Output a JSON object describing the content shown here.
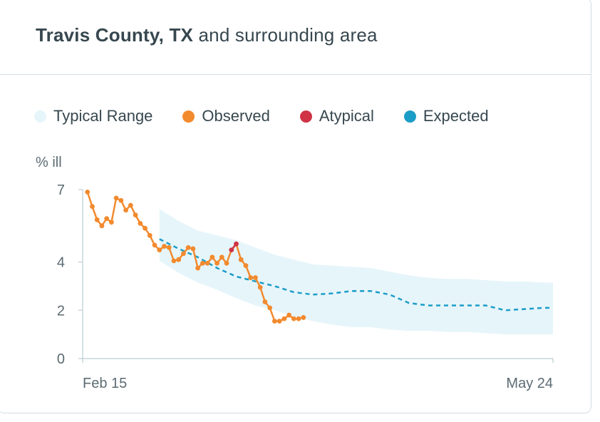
{
  "header": {
    "title_bold": "Travis County, TX",
    "title_rest": "and surrounding area"
  },
  "legend": [
    {
      "label": "Typical Range",
      "color": "#e6f5fa"
    },
    {
      "label": "Observed",
      "color": "#f28a2e"
    },
    {
      "label": "Atypical",
      "color": "#cf3345"
    },
    {
      "label": "Expected",
      "color": "#1c9dc7"
    }
  ],
  "chart_data": {
    "type": "line",
    "ylabel": "% ill",
    "y_ticks": [
      {
        "value": 0,
        "label": "0"
      },
      {
        "value": 2,
        "label": "2"
      },
      {
        "value": 4,
        "label": "4"
      },
      {
        "value": 7,
        "label": "7"
      }
    ],
    "ylim": [
      0,
      7
    ],
    "xlim": [
      0,
      98
    ],
    "x_ticks": [
      {
        "value": 0,
        "label": "Feb 15"
      },
      {
        "value": 98,
        "label": "May 24"
      }
    ],
    "colors": {
      "observed": "#f28a2e",
      "atypical": "#cf3345",
      "expected": "#1c9dc7",
      "range": "#e6f5fa",
      "axis": "#c8d6dc"
    },
    "series": [
      {
        "name": "Observed",
        "role": "observed",
        "x": [
          1,
          2,
          3,
          4,
          5,
          6,
          7,
          8,
          9,
          10,
          11,
          12,
          13,
          14,
          15,
          16,
          17,
          18,
          19,
          20,
          21,
          22,
          23,
          24,
          25,
          26,
          27,
          28,
          29,
          30,
          31,
          32,
          33,
          34,
          35,
          36,
          37,
          38,
          39,
          40,
          41,
          42,
          43,
          44,
          45,
          46
        ],
        "y": [
          6.9,
          6.3,
          5.75,
          5.5,
          5.8,
          5.65,
          6.65,
          6.55,
          6.15,
          6.35,
          5.95,
          5.6,
          5.4,
          5.1,
          4.7,
          4.5,
          4.65,
          4.6,
          4.05,
          4.1,
          4.35,
          4.6,
          4.55,
          3.75,
          3.95,
          3.95,
          4.2,
          3.95,
          4.2,
          3.95,
          4.5,
          4.75,
          4.1,
          3.85,
          3.35,
          3.35,
          2.95,
          2.35,
          2.1,
          1.55,
          1.55,
          1.65,
          1.8,
          1.65,
          1.65,
          1.7
        ]
      },
      {
        "name": "Atypical",
        "role": "atypical",
        "x": [
          31,
          32
        ],
        "y": [
          4.5,
          4.75
        ]
      },
      {
        "name": "Expected",
        "role": "expected",
        "x": [
          16,
          20,
          24,
          28,
          32,
          36,
          40,
          44,
          48,
          52,
          56,
          60,
          64,
          68,
          72,
          76,
          80,
          84,
          88,
          92,
          96,
          98
        ],
        "y": [
          4.95,
          4.55,
          4.2,
          3.75,
          3.4,
          3.2,
          3.0,
          2.75,
          2.65,
          2.7,
          2.8,
          2.8,
          2.65,
          2.3,
          2.2,
          2.2,
          2.2,
          2.2,
          2.0,
          2.05,
          2.1,
          2.1
        ]
      },
      {
        "name": "Typical Range",
        "role": "range",
        "x": [
          16,
          20,
          24,
          28,
          32,
          36,
          40,
          44,
          48,
          52,
          56,
          60,
          64,
          68,
          72,
          76,
          80,
          84,
          88,
          92,
          96,
          98
        ],
        "y_upper": [
          6.2,
          5.7,
          5.3,
          5.1,
          4.9,
          4.6,
          4.3,
          4.1,
          3.9,
          3.85,
          3.8,
          3.75,
          3.6,
          3.45,
          3.35,
          3.3,
          3.3,
          3.25,
          3.2,
          3.2,
          3.15,
          3.15
        ],
        "y_lower": [
          4.05,
          3.55,
          3.15,
          2.85,
          2.5,
          2.2,
          2.0,
          1.75,
          1.55,
          1.4,
          1.3,
          1.3,
          1.2,
          1.15,
          1.15,
          1.1,
          1.1,
          1.05,
          1.0,
          1.0,
          1.0,
          1.0
        ]
      }
    ]
  }
}
